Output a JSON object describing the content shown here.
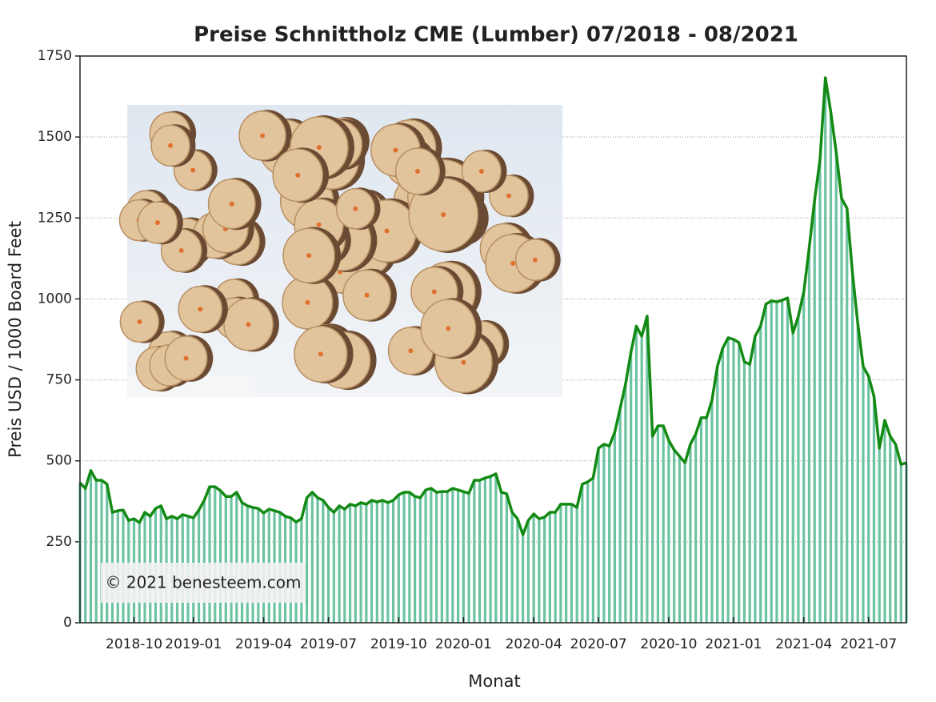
{
  "chart_data": {
    "type": "line",
    "title": "Preise Schnittholz CME (Lumber) 07/2018 - 08/2021",
    "x_label": "Monat",
    "y_label": "Preis USD / 1000 Board Feet",
    "annotation": "© 2021 benesteem.com",
    "categories": [
      null,
      null,
      null,
      null,
      null,
      null,
      null,
      null,
      null,
      null,
      "2018-10",
      null,
      null,
      null,
      null,
      null,
      null,
      null,
      null,
      null,
      null,
      "2019-01",
      null,
      null,
      null,
      null,
      null,
      null,
      null,
      null,
      null,
      null,
      null,
      null,
      "2019-04",
      null,
      null,
      null,
      null,
      null,
      null,
      null,
      null,
      null,
      null,
      null,
      "2019-07",
      null,
      null,
      null,
      null,
      null,
      null,
      null,
      null,
      null,
      null,
      null,
      null,
      "2019-10",
      null,
      null,
      null,
      null,
      null,
      null,
      null,
      null,
      null,
      null,
      null,
      "2020-01",
      null,
      null,
      null,
      null,
      null,
      null,
      null,
      null,
      null,
      null,
      null,
      null,
      "2020-04",
      null,
      null,
      null,
      null,
      null,
      null,
      null,
      null,
      null,
      null,
      null,
      "2020-07",
      null,
      null,
      null,
      null,
      null,
      null,
      null,
      null,
      null,
      null,
      null,
      null,
      "2020-10",
      null,
      null,
      null,
      null,
      null,
      null,
      null,
      null,
      null,
      null,
      null,
      "2021-01",
      null,
      null,
      null,
      null,
      null,
      null,
      null,
      null,
      null,
      null,
      null,
      null,
      "2021-04",
      null,
      null,
      null,
      null,
      null,
      null,
      null,
      null,
      null,
      null,
      null,
      "2021-07",
      null,
      null,
      null,
      null,
      null,
      null,
      null
    ],
    "series": [
      {
        "name": "Lumber",
        "color": "#138a13",
        "fill": "#6cc3a0",
        "values": [
          432,
          415,
          470,
          440,
          440,
          428,
          341,
          346,
          348,
          316,
          321,
          309,
          341,
          329,
          353,
          361,
          321,
          329,
          321,
          334,
          329,
          324,
          348,
          378,
          420,
          420,
          408,
          390,
          390,
          403,
          371,
          361,
          356,
          353,
          339,
          351,
          346,
          341,
          329,
          324,
          311,
          321,
          386,
          403,
          386,
          378,
          356,
          341,
          361,
          351,
          366,
          361,
          371,
          366,
          378,
          373,
          378,
          371,
          378,
          395,
          403,
          403,
          390,
          386,
          410,
          415,
          403,
          405,
          405,
          415,
          410,
          405,
          400,
          440,
          440,
          447,
          452,
          460,
          403,
          398,
          341,
          321,
          272,
          316,
          336,
          321,
          326,
          341,
          341,
          366,
          366,
          366,
          356,
          428,
          435,
          447,
          539,
          551,
          546,
          588,
          662,
          737,
          835,
          916,
          885,
          947,
          576,
          608,
          608,
          563,
          534,
          514,
          494,
          551,
          583,
          633,
          633,
          687,
          791,
          848,
          880,
          875,
          865,
          806,
          798,
          885,
          916,
          984,
          994,
          991,
          996,
          1003,
          895,
          947,
          1021,
          1157,
          1305,
          1429,
          1683,
          1577,
          1453,
          1310,
          1280,
          1083,
          924,
          791,
          761,
          699,
          539,
          625,
          576,
          551,
          489,
          494
        ]
      }
    ],
    "ylim": [
      0,
      1750
    ],
    "yticks": [
      0,
      250,
      500,
      750,
      1000,
      1250,
      1500,
      1750
    ],
    "grid": true
  }
}
